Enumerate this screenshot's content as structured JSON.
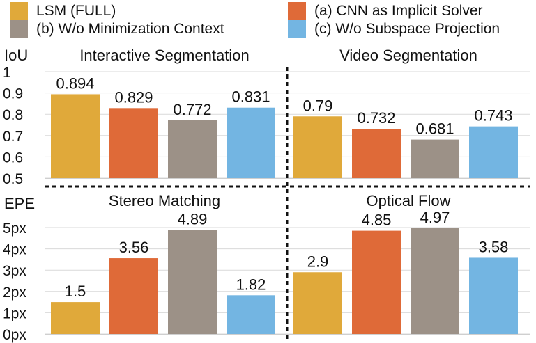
{
  "legend": [
    {
      "key": "full",
      "label": "LSM (FULL)",
      "color": "#E0A93A"
    },
    {
      "key": "cnn",
      "label": "(a) CNN as Implicit Solver",
      "color": "#DF6A38"
    },
    {
      "key": "ctx",
      "label": "(b) W/o Minimization Context",
      "color": "#9C9187"
    },
    {
      "key": "sub",
      "label": "(c) W/o Subspace Projection",
      "color": "#73B5E2"
    }
  ],
  "chart_data": [
    {
      "type": "bar",
      "title": "Interactive Segmentation",
      "ylabel": "IoU",
      "ylim": [
        0.5,
        1.0
      ],
      "yticks": [
        0.5,
        0.6,
        0.7,
        0.8,
        0.9,
        1.0
      ],
      "ytick_labels": [
        "0.5",
        "0.6",
        "0.7",
        "0.8",
        "0.9",
        "1"
      ],
      "categories": [
        "LSM (FULL)",
        "(a) CNN as Implicit Solver",
        "(b) W/o Minimization Context",
        "(c) W/o Subspace Projection"
      ],
      "values": [
        0.894,
        0.829,
        0.772,
        0.831
      ],
      "value_labels": [
        "0.894",
        "0.829",
        "0.772",
        "0.831"
      ]
    },
    {
      "type": "bar",
      "title": "Video Segmentation",
      "ylabel": "IoU",
      "ylim": [
        0.5,
        1.0
      ],
      "categories": [
        "LSM (FULL)",
        "(a) CNN as Implicit Solver",
        "(b) W/o Minimization Context",
        "(c) W/o Subspace Projection"
      ],
      "values": [
        0.79,
        0.732,
        0.681,
        0.743
      ],
      "value_labels": [
        "0.79",
        "0.732",
        "0.681",
        "0.743"
      ]
    },
    {
      "type": "bar",
      "title": "Stereo Matching",
      "ylabel": "EPE",
      "ylim": [
        0,
        5
      ],
      "yticks": [
        0,
        1,
        2,
        3,
        4,
        5
      ],
      "ytick_labels": [
        "0px",
        "1px",
        "2px",
        "3px",
        "4px",
        "5px"
      ],
      "categories": [
        "LSM (FULL)",
        "(a) CNN as Implicit Solver",
        "(b) W/o Minimization Context",
        "(c) W/o Subspace Projection"
      ],
      "values": [
        1.5,
        3.56,
        4.89,
        1.82
      ],
      "value_labels": [
        "1.5",
        "3.56",
        "4.89",
        "1.82"
      ]
    },
    {
      "type": "bar",
      "title": "Optical Flow",
      "ylabel": "EPE",
      "ylim": [
        0,
        5
      ],
      "categories": [
        "LSM (FULL)",
        "(a) CNN as Implicit Solver",
        "(b) W/o Minimization Context",
        "(c) W/o Subspace Projection"
      ],
      "values": [
        2.9,
        4.85,
        4.97,
        3.58
      ],
      "value_labels": [
        "2.9",
        "4.85",
        "4.97",
        "3.58"
      ]
    }
  ]
}
